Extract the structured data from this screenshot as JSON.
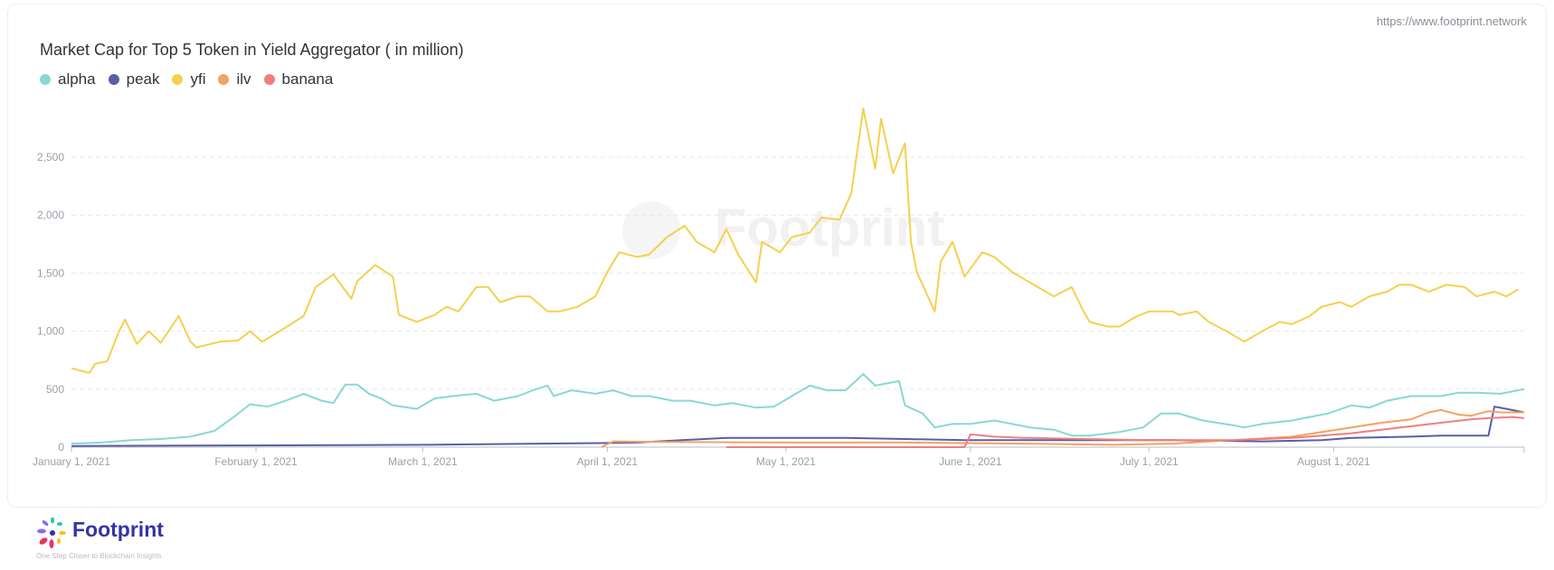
{
  "source_url": "https://www.footprint.network",
  "brand": {
    "name": "Footprint",
    "tagline": "One Step Closer to Blockchain Insights"
  },
  "watermark": "Footprint",
  "chart_data": {
    "type": "line",
    "title": "Market Cap for Top 5 Token in Yield Aggregator ( in million)",
    "xlabel": "",
    "ylabel": "",
    "x_unit": "days since January 1, 2021",
    "xlim": [
      0,
      244
    ],
    "ylim": [
      0,
      3000
    ],
    "yticks": [
      0,
      500,
      1000,
      1500,
      2000,
      2500
    ],
    "ytick_labels": [
      "0",
      "500",
      "1,000",
      "1,500",
      "2,000",
      "2,500"
    ],
    "xticks": [
      0,
      31,
      59,
      90,
      120,
      151,
      181,
      212
    ],
    "xtick_labels": [
      "January 1, 2021",
      "February 1, 2021",
      "March 1, 2021",
      "April 1, 2021",
      "May 1, 2021",
      "June 1, 2021",
      "July 1, 2021",
      "August 1, 2021"
    ],
    "grid": true,
    "legend_position": "top-left",
    "series": [
      {
        "name": "alpha",
        "color": "#88d8d3",
        "points": [
          [
            0,
            30
          ],
          [
            5,
            40
          ],
          [
            10,
            60
          ],
          [
            15,
            70
          ],
          [
            20,
            90
          ],
          [
            24,
            140
          ],
          [
            27,
            250
          ],
          [
            30,
            370
          ],
          [
            33,
            350
          ],
          [
            36,
            400
          ],
          [
            39,
            460
          ],
          [
            42,
            400
          ],
          [
            44,
            380
          ],
          [
            46,
            540
          ],
          [
            48,
            540
          ],
          [
            50,
            460
          ],
          [
            52,
            420
          ],
          [
            54,
            360
          ],
          [
            58,
            330
          ],
          [
            61,
            420
          ],
          [
            64,
            440
          ],
          [
            68,
            460
          ],
          [
            71,
            400
          ],
          [
            75,
            440
          ],
          [
            78,
            500
          ],
          [
            80,
            530
          ],
          [
            81,
            440
          ],
          [
            84,
            490
          ],
          [
            88,
            460
          ],
          [
            91,
            490
          ],
          [
            94,
            440
          ],
          [
            97,
            440
          ],
          [
            101,
            400
          ],
          [
            104,
            400
          ],
          [
            108,
            360
          ],
          [
            111,
            380
          ],
          [
            115,
            340
          ],
          [
            118,
            350
          ],
          [
            121,
            440
          ],
          [
            124,
            530
          ],
          [
            127,
            490
          ],
          [
            130,
            490
          ],
          [
            133,
            630
          ],
          [
            135,
            530
          ],
          [
            139,
            570
          ],
          [
            140,
            360
          ],
          [
            143,
            290
          ],
          [
            145,
            170
          ],
          [
            148,
            200
          ],
          [
            151,
            200
          ],
          [
            155,
            230
          ],
          [
            158,
            200
          ],
          [
            161,
            170
          ],
          [
            165,
            150
          ],
          [
            168,
            100
          ],
          [
            171,
            100
          ],
          [
            176,
            130
          ],
          [
            180,
            170
          ],
          [
            183,
            290
          ],
          [
            186,
            290
          ],
          [
            190,
            230
          ],
          [
            195,
            190
          ],
          [
            197,
            170
          ],
          [
            200,
            200
          ],
          [
            205,
            230
          ],
          [
            208,
            260
          ],
          [
            211,
            290
          ],
          [
            215,
            360
          ],
          [
            218,
            340
          ],
          [
            221,
            400
          ],
          [
            225,
            440
          ],
          [
            230,
            440
          ],
          [
            233,
            470
          ],
          [
            236,
            470
          ],
          [
            240,
            460
          ],
          [
            244,
            500
          ]
        ]
      },
      {
        "name": "peak",
        "color": "#5b5ea6",
        "points": [
          [
            0,
            10
          ],
          [
            30,
            15
          ],
          [
            60,
            20
          ],
          [
            89,
            35
          ],
          [
            95,
            40
          ],
          [
            110,
            80
          ],
          [
            120,
            80
          ],
          [
            130,
            80
          ],
          [
            140,
            70
          ],
          [
            150,
            60
          ],
          [
            170,
            60
          ],
          [
            185,
            60
          ],
          [
            200,
            50
          ],
          [
            210,
            60
          ],
          [
            215,
            80
          ],
          [
            225,
            90
          ],
          [
            230,
            100
          ],
          [
            238,
            100
          ],
          [
            239,
            350
          ],
          [
            241,
            330
          ],
          [
            244,
            300
          ]
        ]
      },
      {
        "name": "yfi",
        "color": "#f5d04f",
        "points": [
          [
            0,
            680
          ],
          [
            3,
            640
          ],
          [
            4,
            720
          ],
          [
            6,
            740
          ],
          [
            8,
            1000
          ],
          [
            9,
            1100
          ],
          [
            11,
            890
          ],
          [
            13,
            1000
          ],
          [
            15,
            900
          ],
          [
            18,
            1130
          ],
          [
            20,
            910
          ],
          [
            21,
            860
          ],
          [
            25,
            910
          ],
          [
            28,
            920
          ],
          [
            30,
            1000
          ],
          [
            32,
            910
          ],
          [
            35,
            1000
          ],
          [
            39,
            1130
          ],
          [
            41,
            1380
          ],
          [
            44,
            1490
          ],
          [
            47,
            1280
          ],
          [
            48,
            1430
          ],
          [
            51,
            1570
          ],
          [
            54,
            1470
          ],
          [
            55,
            1140
          ],
          [
            58,
            1080
          ],
          [
            61,
            1140
          ],
          [
            63,
            1210
          ],
          [
            65,
            1170
          ],
          [
            68,
            1380
          ],
          [
            70,
            1380
          ],
          [
            72,
            1250
          ],
          [
            75,
            1300
          ],
          [
            77,
            1300
          ],
          [
            80,
            1170
          ],
          [
            82,
            1170
          ],
          [
            85,
            1210
          ],
          [
            88,
            1300
          ],
          [
            90,
            1510
          ],
          [
            92,
            1680
          ],
          [
            95,
            1640
          ],
          [
            97,
            1660
          ],
          [
            100,
            1810
          ],
          [
            103,
            1910
          ],
          [
            105,
            1770
          ],
          [
            108,
            1680
          ],
          [
            110,
            1880
          ],
          [
            112,
            1660
          ],
          [
            115,
            1420
          ],
          [
            116,
            1770
          ],
          [
            119,
            1680
          ],
          [
            121,
            1810
          ],
          [
            124,
            1850
          ],
          [
            126,
            1980
          ],
          [
            129,
            1960
          ],
          [
            131,
            2190
          ],
          [
            133,
            2920
          ],
          [
            135,
            2400
          ],
          [
            136,
            2830
          ],
          [
            138,
            2360
          ],
          [
            140,
            2620
          ],
          [
            141,
            1770
          ],
          [
            142,
            1510
          ],
          [
            145,
            1170
          ],
          [
            146,
            1600
          ],
          [
            148,
            1770
          ],
          [
            150,
            1470
          ],
          [
            153,
            1680
          ],
          [
            155,
            1640
          ],
          [
            158,
            1510
          ],
          [
            161,
            1420
          ],
          [
            165,
            1300
          ],
          [
            168,
            1380
          ],
          [
            170,
            1170
          ],
          [
            171,
            1080
          ],
          [
            174,
            1040
          ],
          [
            176,
            1040
          ],
          [
            179,
            1130
          ],
          [
            181,
            1170
          ],
          [
            185,
            1170
          ],
          [
            186,
            1140
          ],
          [
            189,
            1170
          ],
          [
            191,
            1080
          ],
          [
            194,
            1000
          ],
          [
            197,
            910
          ],
          [
            200,
            1000
          ],
          [
            203,
            1080
          ],
          [
            205,
            1060
          ],
          [
            208,
            1130
          ],
          [
            210,
            1210
          ],
          [
            213,
            1250
          ],
          [
            215,
            1210
          ],
          [
            218,
            1300
          ],
          [
            221,
            1340
          ],
          [
            223,
            1400
          ],
          [
            225,
            1400
          ],
          [
            228,
            1340
          ],
          [
            231,
            1400
          ],
          [
            234,
            1380
          ],
          [
            236,
            1300
          ],
          [
            239,
            1340
          ],
          [
            241,
            1300
          ],
          [
            243,
            1360
          ]
        ]
      },
      {
        "name": "ilv",
        "color": "#f4a261",
        "points": [
          [
            89,
            0
          ],
          [
            91,
            50
          ],
          [
            100,
            45
          ],
          [
            120,
            40
          ],
          [
            140,
            40
          ],
          [
            150,
            35
          ],
          [
            160,
            30
          ],
          [
            175,
            20
          ],
          [
            185,
            30
          ],
          [
            195,
            60
          ],
          [
            205,
            90
          ],
          [
            210,
            130
          ],
          [
            215,
            170
          ],
          [
            220,
            210
          ],
          [
            225,
            240
          ],
          [
            228,
            300
          ],
          [
            230,
            320
          ],
          [
            233,
            280
          ],
          [
            235,
            270
          ],
          [
            238,
            310
          ],
          [
            240,
            300
          ],
          [
            244,
            300
          ]
        ]
      },
      {
        "name": "banana",
        "color": "#ef7f7f",
        "points": [
          [
            110,
            0
          ],
          [
            130,
            0
          ],
          [
            150,
            0
          ],
          [
            151,
            110
          ],
          [
            155,
            90
          ],
          [
            160,
            80
          ],
          [
            170,
            70
          ],
          [
            180,
            60
          ],
          [
            195,
            60
          ],
          [
            205,
            80
          ],
          [
            210,
            100
          ],
          [
            215,
            120
          ],
          [
            220,
            150
          ],
          [
            225,
            180
          ],
          [
            230,
            210
          ],
          [
            235,
            240
          ],
          [
            238,
            250
          ],
          [
            242,
            260
          ],
          [
            244,
            250
          ]
        ]
      }
    ]
  }
}
